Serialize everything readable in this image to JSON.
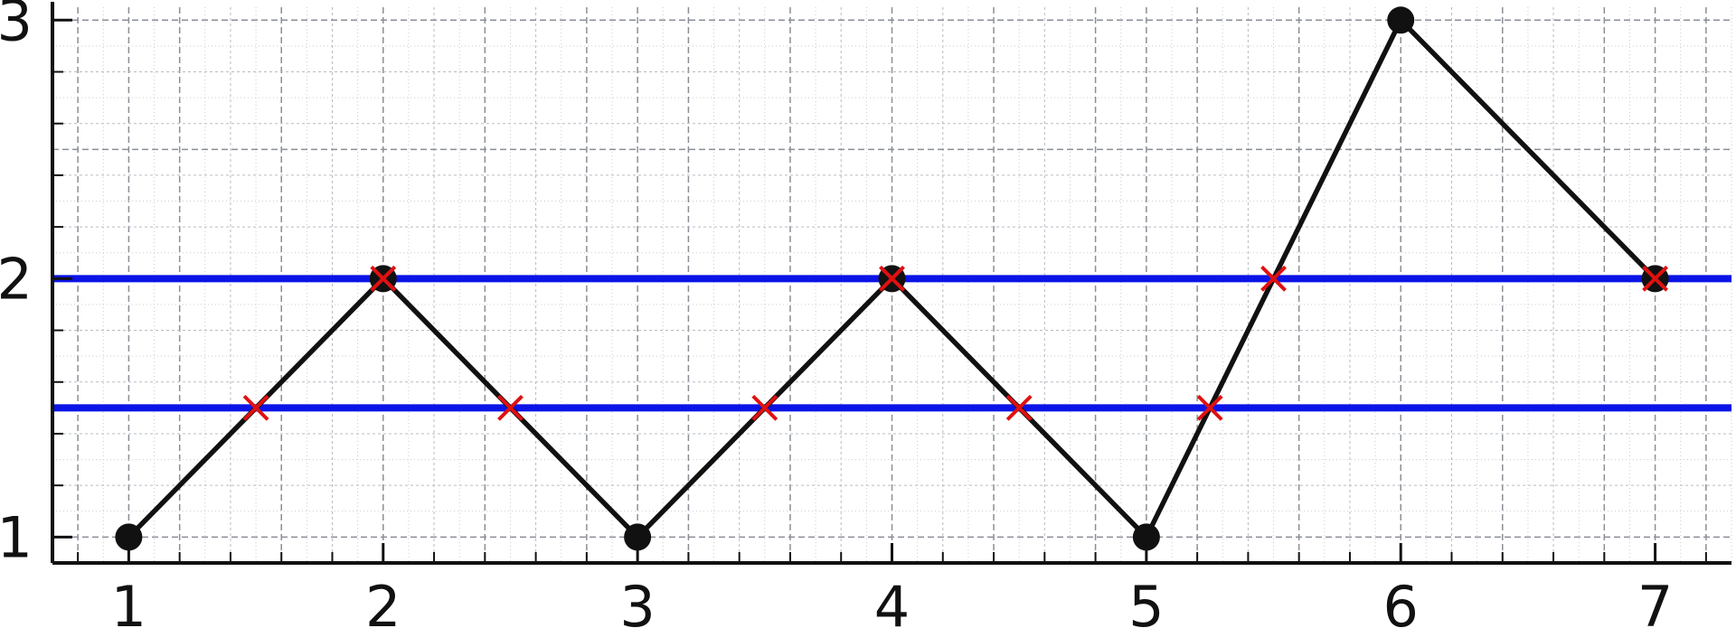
{
  "chart_data": {
    "type": "line",
    "title": "",
    "xlabel": "",
    "ylabel": "",
    "xlim": [
      0.7,
      7.3
    ],
    "ylim": [
      0.9,
      3.05
    ],
    "grid": true,
    "x_ticks": [
      1,
      2,
      3,
      4,
      5,
      6,
      7
    ],
    "y_ticks": [
      1,
      2,
      3
    ],
    "x_tick_labels": [
      "1",
      "2",
      "3",
      "4",
      "5",
      "6",
      "7"
    ],
    "y_tick_labels": [
      "1",
      "2",
      "3"
    ],
    "x_minor_step": 0.2,
    "y_minor_step": 0.2,
    "path": {
      "x": [
        1,
        2,
        3,
        4,
        5,
        6,
        7
      ],
      "y": [
        1,
        2,
        1,
        2,
        1,
        3,
        2
      ],
      "color": "#111111",
      "marker": "circle"
    },
    "horizontal_lines": [
      {
        "y": 2,
        "color": "#0a14e6"
      },
      {
        "y": 1.5,
        "color": "#0a14e6"
      }
    ],
    "crossings": {
      "x": [
        1.5,
        2,
        2.5,
        3.5,
        4,
        4.5,
        5.25,
        5.5,
        7
      ],
      "y": [
        1.5,
        2,
        1.5,
        1.5,
        2,
        1.5,
        1.5,
        2,
        2
      ],
      "color": "#e01010",
      "marker": "x"
    }
  }
}
